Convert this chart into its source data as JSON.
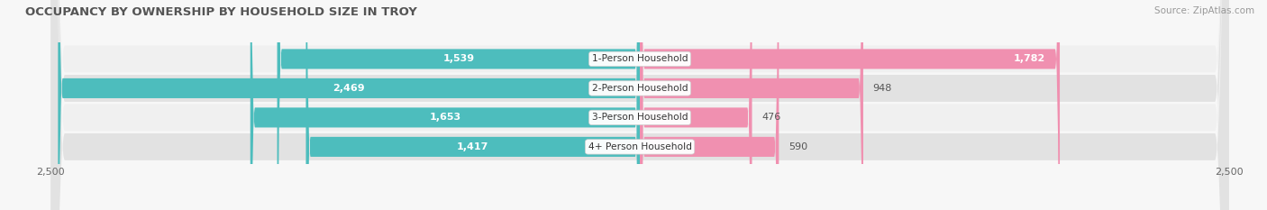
{
  "title": "OCCUPANCY BY OWNERSHIP BY HOUSEHOLD SIZE IN TROY",
  "source": "Source: ZipAtlas.com",
  "categories": [
    "1-Person Household",
    "2-Person Household",
    "3-Person Household",
    "4+ Person Household"
  ],
  "owner_values": [
    1539,
    2469,
    1653,
    1417
  ],
  "renter_values": [
    1782,
    948,
    476,
    590
  ],
  "owner_color": "#4dbdbd",
  "renter_color": "#f090b0",
  "axis_max": 2500,
  "title_fontsize": 9.5,
  "label_fontsize": 8,
  "tick_fontsize": 8,
  "source_fontsize": 7.5,
  "figsize": [
    14.06,
    2.33
  ],
  "dpi": 100,
  "row_bg_light": "#f0f0f0",
  "row_bg_dark": "#e2e2e2",
  "fig_bg": "#f7f7f7"
}
